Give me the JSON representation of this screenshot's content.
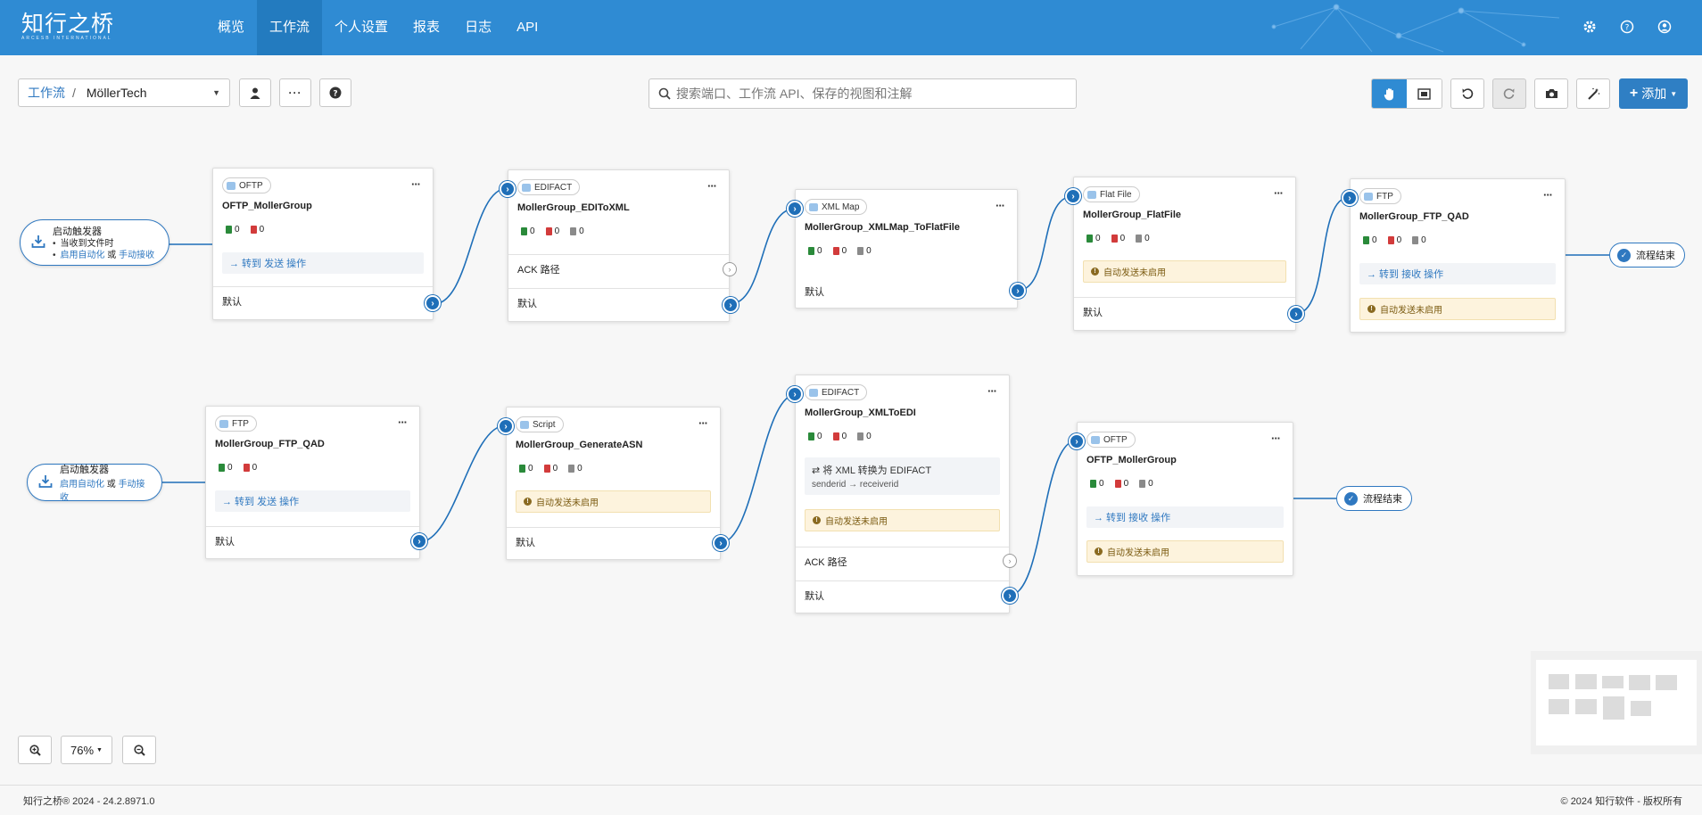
{
  "app": {
    "logo_cn": "知行之桥",
    "logo_en": "ARCESB INTERNATIONAL",
    "nav": [
      "概览",
      "工作流",
      "个人设置",
      "报表",
      "日志",
      "API"
    ]
  },
  "toolbar": {
    "breadcrumb_root": "工作流",
    "breadcrumb_sep": "/",
    "workspace": "MöllerTech",
    "search_placeholder": "搜索端口、工作流 API、保存的视图和注解",
    "add_label": "添加"
  },
  "triggers": [
    {
      "title": "启动触发器",
      "lines": [
        {
          "text": "当收到文件时"
        },
        {
          "link1": "启用自动化",
          "or": "或",
          "link2": "手动接收"
        }
      ]
    },
    {
      "title": "启动触发器",
      "lines": [
        {
          "link1": "启用自动化",
          "or": "或",
          "link2": "手动接收"
        }
      ]
    }
  ],
  "end_label": "流程结束",
  "nodes": [
    {
      "tag": "OFTP",
      "name": "OFTP_MollerGroup",
      "counts": [
        "0",
        "0"
      ],
      "action": "→ 转到 发送 操作",
      "default": "默认"
    },
    {
      "tag": "EDIFACT",
      "name": "MollerGroup_EDIToXML",
      "counts": [
        "0",
        "0",
        "0"
      ],
      "ack": "ACK 路径",
      "default": "默认"
    },
    {
      "tag": "XML Map",
      "name": "MollerGroup_XMLMap_ToFlatFile",
      "counts": [
        "0",
        "0",
        "0"
      ],
      "default": "默认"
    },
    {
      "tag": "Flat File",
      "name": "MollerGroup_FlatFile",
      "counts": [
        "0",
        "0",
        "0"
      ],
      "warn": "自动发送未启用",
      "default": "默认"
    },
    {
      "tag": "FTP",
      "name": "MollerGroup_FTP_QAD",
      "counts": [
        "0",
        "0",
        "0"
      ],
      "action": "→ 转到 接收 操作",
      "warn": "自动发送未启用"
    },
    {
      "tag": "FTP",
      "name": "MollerGroup_FTP_QAD",
      "counts": [
        "0",
        "0"
      ],
      "action": "→ 转到 发送 操作",
      "default": "默认"
    },
    {
      "tag": "Script",
      "name": "MollerGroup_GenerateASN",
      "counts": [
        "0",
        "0",
        "0"
      ],
      "warn": "自动发送未启用",
      "default": "默认"
    },
    {
      "tag": "EDIFACT",
      "name": "MollerGroup_XMLToEDI",
      "counts": [
        "0",
        "0",
        "0"
      ],
      "convert": "⇄ 将 XML 转换为 EDIFACT",
      "convert_sub": "senderid → receiverid",
      "warn": "自动发送未启用",
      "ack": "ACK 路径",
      "default": "默认"
    },
    {
      "tag": "OFTP",
      "name": "OFTP_MollerGroup",
      "counts": [
        "0",
        "0",
        "0"
      ],
      "action": "→ 转到 接收 操作",
      "warn": "自动发送未启用"
    }
  ],
  "zoom": {
    "level": "76%"
  },
  "footer": {
    "left": "知行之桥® 2024 - 24.2.8971.0",
    "right": "© 2024 知行软件 - 版权所有"
  },
  "colors": {
    "nav": "#2f8bd3",
    "accent": "#1f6fb8",
    "warn_bg": "#fdf3dd"
  }
}
